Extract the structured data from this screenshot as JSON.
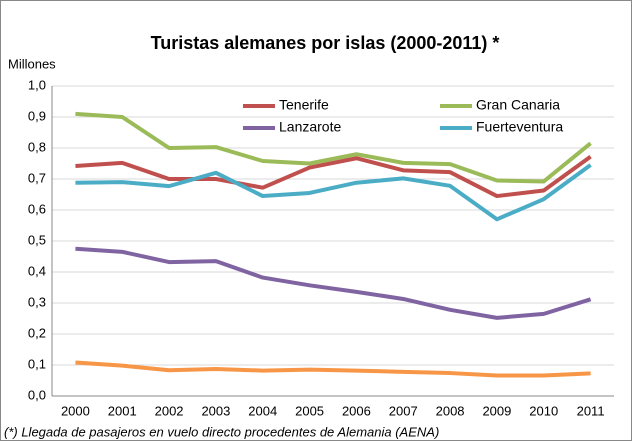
{
  "chart_data": {
    "type": "line",
    "title": "Turistas alemanes por islas (2000-2011) *",
    "y_label": "Millones",
    "footnote": "(*) Llegada de pasajeros en vuelo directo procedentes de Alemania (AENA)",
    "categories": [
      "2000",
      "2001",
      "2002",
      "2003",
      "2004",
      "2005",
      "2006",
      "2007",
      "2008",
      "2009",
      "2010",
      "2011"
    ],
    "series": [
      {
        "name": "Tenerife",
        "color": "#c0504d",
        "values": [
          0.742,
          0.752,
          0.7,
          0.7,
          0.672,
          0.737,
          0.767,
          0.728,
          0.722,
          0.645,
          0.663,
          0.772
        ]
      },
      {
        "name": "Gran Canaria",
        "color": "#9bbb59",
        "values": [
          0.91,
          0.9,
          0.8,
          0.803,
          0.758,
          0.75,
          0.78,
          0.752,
          0.748,
          0.695,
          0.692,
          0.815
        ]
      },
      {
        "name": "Lanzarote",
        "color": "#8064a2",
        "values": [
          0.475,
          0.465,
          0.432,
          0.435,
          0.382,
          0.357,
          0.336,
          0.313,
          0.278,
          0.252,
          0.265,
          0.312
        ]
      },
      {
        "name": "Fuerteventura",
        "color": "#4bacc6",
        "values": [
          0.688,
          0.69,
          0.677,
          0.72,
          0.645,
          0.655,
          0.688,
          0.702,
          0.678,
          0.57,
          0.635,
          0.745
        ]
      },
      {
        "color": "#f79646",
        "values": [
          0.108,
          0.098,
          0.083,
          0.087,
          0.082,
          0.085,
          0.082,
          0.078,
          0.074,
          0.066,
          0.066,
          0.073
        ]
      }
    ],
    "ylim": [
      0,
      1
    ],
    "yticks": [
      {
        "value": 0,
        "label": "0,0"
      },
      {
        "value": 0.1,
        "label": "0,1"
      },
      {
        "value": 0.2,
        "label": "0,2"
      },
      {
        "value": 0.3,
        "label": "0,3"
      },
      {
        "value": 0.4,
        "label": "0,4"
      },
      {
        "value": 0.5,
        "label": "0,5"
      },
      {
        "value": 0.6,
        "label": "0,6"
      },
      {
        "value": 0.7,
        "label": "0,7"
      },
      {
        "value": 0.8,
        "label": "0,8"
      },
      {
        "value": 0.9,
        "label": "0,9"
      },
      {
        "value": 1,
        "label": "1,0"
      }
    ],
    "grid": true
  }
}
